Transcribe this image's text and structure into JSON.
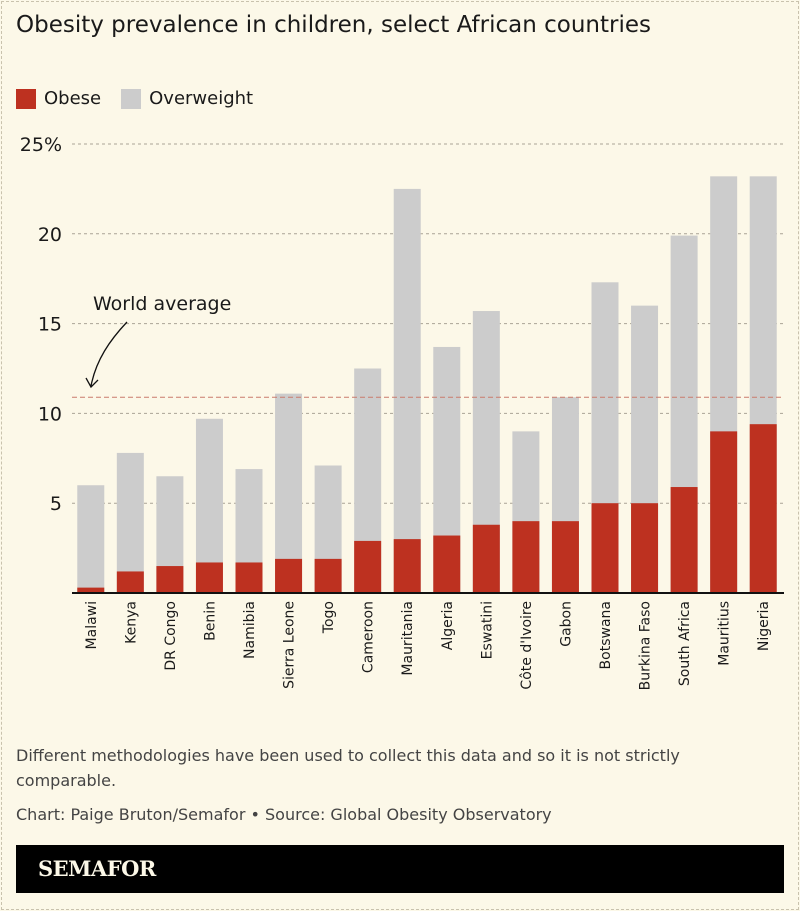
{
  "chart_data": {
    "type": "bar",
    "title": "Obesity prevalence in children, select African countries",
    "categories": [
      "Malawi",
      "Kenya",
      "DR Congo",
      "Benin",
      "Namibia",
      "Sierra Leone",
      "Togo",
      "Cameroon",
      "Mauritania",
      "Algeria",
      "Eswatini",
      "Côte d'Ivoire",
      "Gabon",
      "Botswana",
      "Burkina Faso",
      "South Africa",
      "Mauritius",
      "Nigeria"
    ],
    "series": [
      {
        "name": "Obese",
        "color": "#bd3120",
        "values": [
          0.3,
          1.2,
          1.5,
          1.7,
          1.7,
          1.9,
          1.9,
          2.9,
          3.0,
          3.2,
          3.8,
          4.0,
          4.0,
          5.0,
          5.0,
          5.9,
          9.0,
          9.4
        ]
      },
      {
        "name": "Overweight",
        "color": "#cccccc",
        "values": [
          6.0,
          7.8,
          6.5,
          9.7,
          6.9,
          11.1,
          7.1,
          12.5,
          22.5,
          13.7,
          15.7,
          9.0,
          10.9,
          17.3,
          16.0,
          19.9,
          23.2,
          23.2
        ]
      }
    ],
    "yticks": [
      5,
      10,
      15,
      20,
      25
    ],
    "ytick_labels": [
      "5",
      "10",
      "15",
      "20",
      "25%"
    ],
    "ylim": [
      0,
      25
    ],
    "grid": true,
    "legend_placement": "top-left",
    "reference_line": {
      "label": "World average",
      "value": 10.9
    }
  },
  "footer": {
    "note": "Different methodologies have been used to collect this data and so it is not strictly comparable.",
    "credit": "Chart: Paige Bruton/Semafor  • Source: Global Obesity Observatory",
    "brand": "SEMAFOR"
  }
}
